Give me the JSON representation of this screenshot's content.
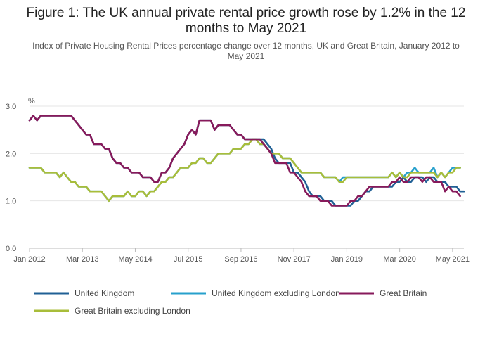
{
  "chart_data": {
    "type": "line",
    "title_line1": "Figure 1: The UK annual private rental price growth rose by 1.2% in the 12",
    "title_line2": "months to May 2021",
    "subtitle_line1": "Index of Private Housing Rental Prices percentage change over 12 months, UK and Great Britain, January 2012 to",
    "subtitle_line2": "May 2021",
    "ylabel": "%",
    "ylim": [
      0,
      3
    ],
    "yticks": [
      "0.0",
      "1.0",
      "2.0",
      "3.0"
    ],
    "x_start": "Jan 2012",
    "x_end": "May 2021",
    "xticks": [
      "Jan 2012",
      "Mar 2013",
      "May 2014",
      "Jul 2015",
      "Sep 2016",
      "Nov 2017",
      "Jan 2019",
      "Mar 2020",
      "May 2021"
    ],
    "grid": true,
    "legend_position": "bottom",
    "series": [
      {
        "name": "United Kingdom",
        "color": "#206095",
        "values": [
          2.7,
          2.8,
          2.7,
          2.8,
          2.8,
          2.8,
          2.8,
          2.8,
          2.8,
          2.8,
          2.8,
          2.8,
          2.7,
          2.6,
          2.5,
          2.4,
          2.4,
          2.2,
          2.2,
          2.2,
          2.1,
          2.1,
          1.9,
          1.8,
          1.8,
          1.7,
          1.7,
          1.6,
          1.6,
          1.6,
          1.5,
          1.5,
          1.5,
          1.4,
          1.4,
          1.6,
          1.6,
          1.7,
          1.9,
          2.0,
          2.1,
          2.2,
          2.4,
          2.5,
          2.4,
          2.7,
          2.7,
          2.7,
          2.7,
          2.5,
          2.6,
          2.6,
          2.6,
          2.6,
          2.5,
          2.4,
          2.4,
          2.3,
          2.3,
          2.3,
          2.3,
          2.3,
          2.3,
          2.2,
          2.1,
          1.9,
          1.8,
          1.8,
          1.8,
          1.8,
          1.6,
          1.6,
          1.5,
          1.4,
          1.2,
          1.1,
          1.1,
          1.1,
          1.0,
          1.0,
          1.0,
          0.9,
          0.9,
          0.9,
          0.9,
          0.9,
          1.0,
          1.0,
          1.1,
          1.2,
          1.2,
          1.3,
          1.3,
          1.3,
          1.3,
          1.3,
          1.3,
          1.4,
          1.4,
          1.5,
          1.4,
          1.4,
          1.5,
          1.5,
          1.5,
          1.4,
          1.5,
          1.5,
          1.4,
          1.4,
          1.4,
          1.3,
          1.3,
          1.3,
          1.2,
          1.2
        ]
      },
      {
        "name": "United Kingdom excluding London",
        "color": "#27a0cc",
        "values": [
          1.7,
          1.7,
          1.7,
          1.7,
          1.6,
          1.6,
          1.6,
          1.6,
          1.5,
          1.6,
          1.5,
          1.4,
          1.4,
          1.3,
          1.3,
          1.3,
          1.2,
          1.2,
          1.2,
          1.2,
          1.1,
          1.0,
          1.1,
          1.1,
          1.1,
          1.1,
          1.2,
          1.1,
          1.1,
          1.2,
          1.2,
          1.1,
          1.2,
          1.2,
          1.3,
          1.4,
          1.4,
          1.5,
          1.5,
          1.6,
          1.7,
          1.7,
          1.7,
          1.8,
          1.8,
          1.9,
          1.9,
          1.8,
          1.8,
          1.9,
          2.0,
          2.0,
          2.0,
          2.0,
          2.1,
          2.1,
          2.1,
          2.2,
          2.2,
          2.3,
          2.3,
          2.2,
          2.2,
          2.1,
          2.0,
          2.0,
          2.0,
          1.9,
          1.9,
          1.9,
          1.8,
          1.7,
          1.6,
          1.6,
          1.6,
          1.6,
          1.6,
          1.6,
          1.5,
          1.5,
          1.5,
          1.5,
          1.4,
          1.5,
          1.5,
          1.5,
          1.5,
          1.5,
          1.5,
          1.5,
          1.5,
          1.5,
          1.5,
          1.5,
          1.5,
          1.5,
          1.6,
          1.5,
          1.6,
          1.5,
          1.6,
          1.6,
          1.7,
          1.6,
          1.6,
          1.6,
          1.6,
          1.7,
          1.5,
          1.6,
          1.5,
          1.6,
          1.7,
          1.7,
          1.7
        ]
      },
      {
        "name": "Great Britain",
        "color": "#871a5b",
        "values": [
          2.7,
          2.8,
          2.7,
          2.8,
          2.8,
          2.8,
          2.8,
          2.8,
          2.8,
          2.8,
          2.8,
          2.8,
          2.7,
          2.6,
          2.5,
          2.4,
          2.4,
          2.2,
          2.2,
          2.2,
          2.1,
          2.1,
          1.9,
          1.8,
          1.8,
          1.7,
          1.7,
          1.6,
          1.6,
          1.6,
          1.5,
          1.5,
          1.5,
          1.4,
          1.4,
          1.6,
          1.6,
          1.7,
          1.9,
          2.0,
          2.1,
          2.2,
          2.4,
          2.5,
          2.4,
          2.7,
          2.7,
          2.7,
          2.7,
          2.5,
          2.6,
          2.6,
          2.6,
          2.6,
          2.5,
          2.4,
          2.4,
          2.3,
          2.3,
          2.3,
          2.3,
          2.3,
          2.2,
          2.1,
          2.0,
          1.8,
          1.8,
          1.8,
          1.8,
          1.6,
          1.6,
          1.5,
          1.4,
          1.2,
          1.1,
          1.1,
          1.1,
          1.0,
          1.0,
          1.0,
          0.9,
          0.9,
          0.9,
          0.9,
          0.9,
          1.0,
          1.0,
          1.1,
          1.1,
          1.2,
          1.3,
          1.3,
          1.3,
          1.3,
          1.3,
          1.3,
          1.4,
          1.4,
          1.5,
          1.4,
          1.4,
          1.5,
          1.5,
          1.5,
          1.4,
          1.5,
          1.5,
          1.4,
          1.4,
          1.4,
          1.2,
          1.3,
          1.2,
          1.2,
          1.1
        ]
      },
      {
        "name": "Great Britain excluding London",
        "color": "#a8bd3a",
        "values": [
          1.7,
          1.7,
          1.7,
          1.7,
          1.6,
          1.6,
          1.6,
          1.6,
          1.5,
          1.6,
          1.5,
          1.4,
          1.4,
          1.3,
          1.3,
          1.3,
          1.2,
          1.2,
          1.2,
          1.2,
          1.1,
          1.0,
          1.1,
          1.1,
          1.1,
          1.1,
          1.2,
          1.1,
          1.1,
          1.2,
          1.2,
          1.1,
          1.2,
          1.2,
          1.3,
          1.4,
          1.4,
          1.5,
          1.5,
          1.6,
          1.7,
          1.7,
          1.7,
          1.8,
          1.8,
          1.9,
          1.9,
          1.8,
          1.8,
          1.9,
          2.0,
          2.0,
          2.0,
          2.0,
          2.1,
          2.1,
          2.1,
          2.2,
          2.2,
          2.3,
          2.3,
          2.2,
          2.2,
          2.1,
          2.0,
          2.0,
          2.0,
          1.9,
          1.9,
          1.9,
          1.8,
          1.7,
          1.6,
          1.6,
          1.6,
          1.6,
          1.6,
          1.6,
          1.5,
          1.5,
          1.5,
          1.5,
          1.4,
          1.4,
          1.5,
          1.5,
          1.5,
          1.5,
          1.5,
          1.5,
          1.5,
          1.5,
          1.5,
          1.5,
          1.5,
          1.5,
          1.6,
          1.5,
          1.6,
          1.5,
          1.5,
          1.6,
          1.6,
          1.6,
          1.6,
          1.6,
          1.6,
          1.6,
          1.5,
          1.6,
          1.5,
          1.6,
          1.6,
          1.7,
          1.7
        ]
      }
    ]
  }
}
